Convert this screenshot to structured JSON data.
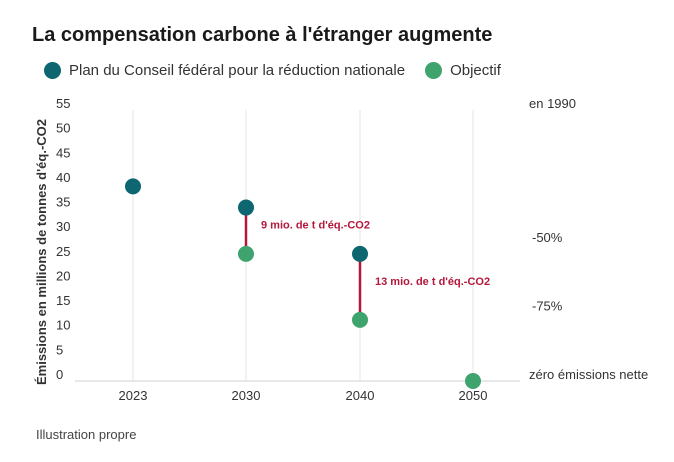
{
  "chart_data": {
    "type": "scatter",
    "title": "La compensation carbone à l'étranger augmente",
    "ylabel": "Émissions en millions de tonnes d'éq.-CO2",
    "xlabel": "",
    "ylim": [
      0,
      55
    ],
    "yticks": [
      0,
      5,
      10,
      15,
      20,
      25,
      30,
      35,
      40,
      45,
      50,
      55
    ],
    "categories": [
      "2023",
      "2030",
      "2040",
      "2050"
    ],
    "series": [
      {
        "name": "Plan du Conseil fédéral pour la réduction nationale",
        "color": "#0d6670",
        "points": [
          {
            "x": "2023",
            "y": 39.5
          },
          {
            "x": "2030",
            "y": 35.2
          },
          {
            "x": "2040",
            "y": 25.8
          }
        ]
      },
      {
        "name": "Objectif",
        "color": "#3fa36d",
        "points": [
          {
            "x": "2030",
            "y": 25.8
          },
          {
            "x": "2040",
            "y": 12.4
          },
          {
            "x": "2050",
            "y": 0
          }
        ]
      }
    ],
    "gaps": [
      {
        "x": "2030",
        "from": 35.2,
        "to": 25.8,
        "label": "9 mio. de t d'éq.-CO2",
        "color": "#b5173b"
      },
      {
        "x": "2040",
        "from": 25.8,
        "to": 12.4,
        "label": "13 mio. de t d'éq.-CO2",
        "color": "#b5173b"
      }
    ],
    "right_annotations": [
      {
        "y": 55,
        "label": "en 1990"
      },
      {
        "y": 27.8,
        "label": "-50%"
      },
      {
        "y": 13.9,
        "label": "-75%"
      },
      {
        "y": 0,
        "label": "zéro émissions nette"
      }
    ],
    "source": "Illustration propre"
  }
}
